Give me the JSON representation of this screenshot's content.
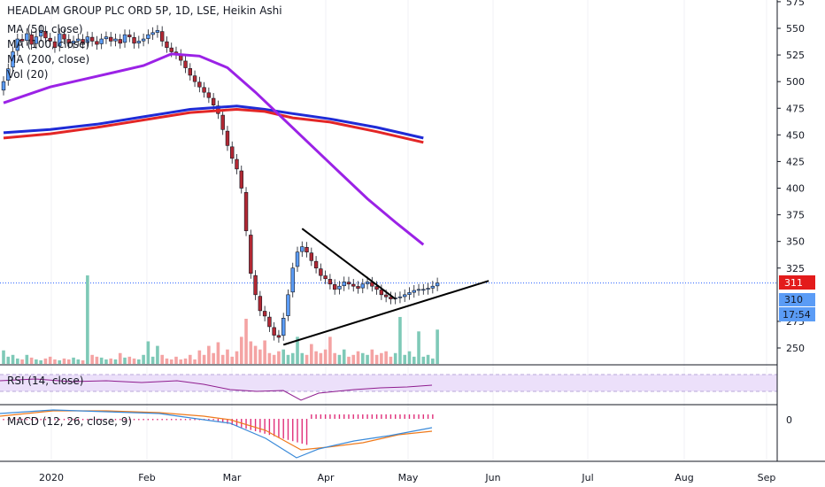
{
  "title": "HEADLAM GROUP PLC ORD 5P, 1D, LSE, Heikin Ashi",
  "legend": {
    "ma1": "MA (50, close)",
    "ma2": "MA (100, close)",
    "ma3": "MA (200, close)",
    "vol": "Vol (20)",
    "rsi": "RSI (14, close)",
    "macd": "MACD (12, 26, close, 9)"
  },
  "price_tags": {
    "last": "311",
    "line": "310",
    "countdown": "17:54"
  },
  "macd_zero_label": "0",
  "colors": {
    "up": "#5b9cf6",
    "down": "#b22833",
    "ma50": "#9b22e6",
    "ma100": "#1f2bd6",
    "ma200": "#e32626",
    "vol_up": "#7ec9b7",
    "vol_down": "#f4a3a3",
    "rsi": "#8f1d8f",
    "rsi_band": "#ece0fa",
    "macd_line": "#3a8ad9",
    "signal_line": "#ef7a1c",
    "hist": "#e0307a",
    "last_tag": "#e31b1b",
    "line_tag": "#5b9cf6"
  },
  "chart_data": {
    "type": "candlestick",
    "y_ticks": [
      575,
      550,
      525,
      500,
      475,
      450,
      425,
      400,
      375,
      350,
      325,
      275,
      250
    ],
    "ylim": [
      235,
      575
    ],
    "x_labels": [
      "2020",
      "Feb",
      "Mar",
      "Apr",
      "May",
      "Jun",
      "Jul",
      "Aug",
      "Sep"
    ],
    "close_series": [
      500,
      512,
      528,
      540,
      538,
      545,
      535,
      542,
      548,
      541,
      538,
      532,
      545,
      540,
      536,
      538,
      540,
      536,
      542,
      538,
      535,
      540,
      542,
      538,
      540,
      536,
      544,
      542,
      536,
      538,
      540,
      544,
      546,
      548,
      538,
      532,
      528,
      526,
      520,
      513,
      506,
      500,
      495,
      490,
      485,
      478,
      470,
      455,
      440,
      428,
      418,
      400,
      360,
      320,
      300,
      285,
      280,
      270,
      262,
      260,
      278,
      300,
      325,
      340,
      345,
      340,
      332,
      325,
      318,
      315,
      310,
      305,
      308,
      312,
      310,
      308,
      306,
      310,
      312,
      308,
      305,
      300,
      298,
      296,
      297,
      298,
      300,
      302,
      304,
      305,
      305,
      306,
      308,
      311
    ],
    "ma50": [
      {
        "d": 0,
        "v": 480
      },
      {
        "d": 10,
        "v": 495
      },
      {
        "d": 20,
        "v": 505
      },
      {
        "d": 30,
        "v": 515
      },
      {
        "d": 36,
        "v": 526
      },
      {
        "d": 42,
        "v": 524
      },
      {
        "d": 48,
        "v": 513
      },
      {
        "d": 54,
        "v": 490
      },
      {
        "d": 60,
        "v": 465
      },
      {
        "d": 66,
        "v": 440
      },
      {
        "d": 72,
        "v": 415
      },
      {
        "d": 78,
        "v": 390
      },
      {
        "d": 84,
        "v": 368
      },
      {
        "d": 90,
        "v": 347
      }
    ],
    "ma100": [
      {
        "d": 0,
        "v": 452
      },
      {
        "d": 10,
        "v": 455
      },
      {
        "d": 20,
        "v": 460
      },
      {
        "d": 30,
        "v": 467
      },
      {
        "d": 40,
        "v": 474
      },
      {
        "d": 50,
        "v": 477
      },
      {
        "d": 56,
        "v": 474
      },
      {
        "d": 62,
        "v": 470
      },
      {
        "d": 70,
        "v": 465
      },
      {
        "d": 80,
        "v": 457
      },
      {
        "d": 90,
        "v": 447
      }
    ],
    "ma200": [
      {
        "d": 0,
        "v": 447
      },
      {
        "d": 10,
        "v": 451
      },
      {
        "d": 20,
        "v": 457
      },
      {
        "d": 30,
        "v": 464
      },
      {
        "d": 40,
        "v": 471
      },
      {
        "d": 50,
        "v": 474
      },
      {
        "d": 56,
        "v": 472
      },
      {
        "d": 62,
        "v": 466
      },
      {
        "d": 70,
        "v": 462
      },
      {
        "d": 80,
        "v": 453
      },
      {
        "d": 90,
        "v": 443
      }
    ],
    "trendlines": [
      {
        "from": {
          "d": 60,
          "v": 253
        },
        "to": {
          "d": 104,
          "v": 313
        }
      },
      {
        "from": {
          "d": 64,
          "v": 362
        },
        "to": {
          "d": 84,
          "v": 296
        }
      }
    ],
    "volume_rel": [
      0.15,
      0.08,
      0.1,
      0.06,
      0.05,
      0.1,
      0.07,
      0.05,
      0.04,
      0.06,
      0.08,
      0.05,
      0.04,
      0.06,
      0.05,
      0.07,
      0.05,
      0.04,
      0.98,
      0.1,
      0.08,
      0.07,
      0.05,
      0.06,
      0.05,
      0.12,
      0.07,
      0.08,
      0.06,
      0.05,
      0.1,
      0.25,
      0.08,
      0.2,
      0.1,
      0.06,
      0.05,
      0.08,
      0.05,
      0.06,
      0.1,
      0.05,
      0.15,
      0.1,
      0.2,
      0.12,
      0.24,
      0.1,
      0.16,
      0.08,
      0.14,
      0.3,
      0.5,
      0.25,
      0.2,
      0.16,
      0.26,
      0.12,
      0.1,
      0.14,
      0.16,
      0.1,
      0.12,
      0.3,
      0.12,
      0.1,
      0.22,
      0.14,
      0.12,
      0.16,
      0.3,
      0.12,
      0.1,
      0.16,
      0.08,
      0.1,
      0.14,
      0.12,
      0.1,
      0.16,
      0.1,
      0.12,
      0.14,
      0.08,
      0.12,
      0.52,
      0.1,
      0.14,
      0.08,
      0.36,
      0.08,
      0.1,
      0.06,
      0.38
    ]
  }
}
